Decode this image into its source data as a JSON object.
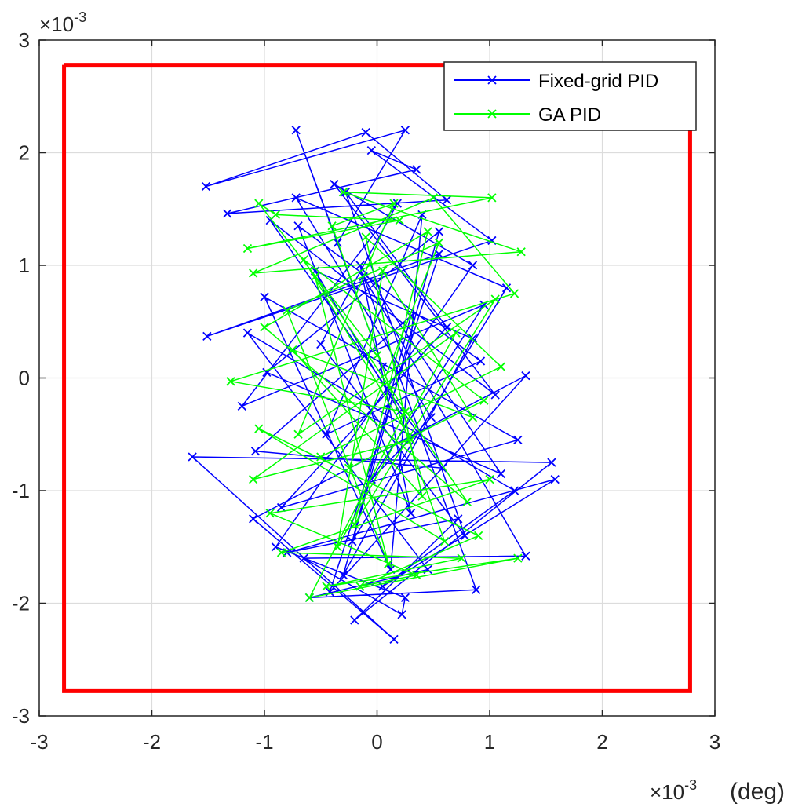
{
  "chart_data": {
    "type": "line",
    "title": "",
    "xlabel": "(deg)",
    "ylabel": "",
    "x_multiplier": "×10",
    "x_exponent": "-3",
    "y_multiplier": "×10",
    "y_exponent": "-3",
    "xlim": [
      -3,
      3
    ],
    "ylim": [
      -3,
      3
    ],
    "xticks": [
      -3,
      -2,
      -1,
      0,
      1,
      2,
      3
    ],
    "yticks": [
      -3,
      -2,
      -1,
      0,
      1,
      2,
      3
    ],
    "xtick_labels": [
      "-3",
      "-2",
      "-1",
      "0",
      "1",
      "2",
      "3"
    ],
    "ytick_labels": [
      "-3",
      "-2",
      "-1",
      "0",
      "1",
      "2",
      "3"
    ],
    "grid": true,
    "legend_position": "top-right",
    "boundary": {
      "color": "#ff0000",
      "x": [
        -2.78,
        2.78,
        2.78,
        -2.78,
        -2.78
      ],
      "y": [
        2.78,
        2.78,
        -2.78,
        -2.78,
        2.78
      ]
    },
    "series": [
      {
        "name": "Fixed-grid PID",
        "color": "#0000ff",
        "marker": "x",
        "x": [
          0.05,
          -0.72,
          -0.35,
          0.25,
          -1.52,
          -0.1,
          0.62,
          -1.33,
          0.35,
          -0.05,
          1.02,
          -1.51,
          0.55,
          -0.42,
          1.32,
          -1.1,
          0.15,
          -1.64,
          1.55,
          -0.2,
          0.72,
          -0.8,
          1.58,
          0.05,
          1.22,
          -1.15,
          0.45,
          -0.6,
          0.88,
          -0.12,
          1.32,
          -0.65,
          0.22,
          0.25,
          -0.9,
          0.85,
          -0.38,
          1.05,
          -0.95,
          0.58,
          -1.08,
          0.3,
          -0.22,
          1.15,
          -0.72,
          0.48,
          -0.05,
          0.95,
          -1.2,
          0.18,
          -0.5,
          0.78,
          -0.28,
          0.62,
          -0.85,
          1.25,
          -1.0,
          0.12,
          0.4,
          -0.45,
          0.92,
          -0.7,
          0.3,
          -0.15,
          1.1,
          -0.98,
          0.55,
          -0.3,
          0.85,
          -0.55,
          0.2
        ],
        "y": [
          0.1,
          2.2,
          1.2,
          2.2,
          1.7,
          2.18,
          1.58,
          1.46,
          1.85,
          2.02,
          1.22,
          0.37,
          1.1,
          -1.9,
          0.02,
          -1.25,
          -2.32,
          -0.7,
          -0.75,
          -2.15,
          -1.25,
          -1.55,
          -0.9,
          -1.85,
          -1.0,
          0.4,
          -1.7,
          -1.95,
          -1.88,
          0.9,
          -1.58,
          -1.6,
          -2.1,
          -1.95,
          -1.5,
          1.0,
          1.72,
          -0.15,
          1.4,
          -0.8,
          -0.65,
          0.55,
          -1.45,
          0.8,
          1.6,
          -0.35,
          -0.9,
          0.65,
          -0.25,
          1.55,
          0.3,
          -1.4,
          1.65,
          0.45,
          -1.15,
          -0.55,
          0.72,
          -1.7,
          1.45,
          -0.5,
          0.15,
          1.35,
          -1.2,
          1.0,
          -0.85,
          0.05,
          1.3,
          -1.75,
          0.35,
          0.95,
          -0.3
        ]
      },
      {
        "name": "GA PID",
        "color": "#00ff00",
        "marker": "x",
        "x": [
          0.0,
          -1.05,
          -0.9,
          0.2,
          -1.15,
          1.02,
          -0.3,
          1.28,
          -1.1,
          0.5,
          1.22,
          -1.3,
          0.25,
          -0.6,
          1.25,
          -0.45,
          0.75,
          -0.85,
          1.0,
          -0.95,
          0.35,
          -0.15,
          0.9,
          -1.05,
          0.6,
          -0.4,
          0.15,
          -0.7,
          1.05,
          -0.2,
          0.45,
          -1.0,
          0.8,
          -0.55,
          0.1,
          -0.8,
          0.55,
          -0.25,
          0.95,
          -0.65,
          0.3,
          -1.1,
          0.7,
          -0.35,
          0.05,
          0.85,
          -0.75,
          0.4,
          -0.1,
          1.1,
          -0.5
        ],
        "y": [
          0.2,
          1.55,
          1.45,
          1.4,
          1.15,
          1.6,
          1.65,
          1.12,
          0.93,
          1.6,
          0.75,
          -0.03,
          -0.3,
          -1.95,
          -1.6,
          -1.85,
          -1.6,
          -1.55,
          -0.9,
          -1.2,
          -1.75,
          -1.85,
          -1.4,
          -0.45,
          -1.45,
          1.35,
          1.55,
          -0.5,
          0.7,
          -1.3,
          1.3,
          0.45,
          -1.1,
          0.9,
          -1.65,
          0.6,
          1.2,
          -0.8,
          -0.2,
          1.05,
          -0.55,
          -0.9,
          0.4,
          -1.5,
          0.95,
          -0.35,
          0.25,
          -1.05,
          1.25,
          0.1,
          -0.7
        ]
      }
    ]
  }
}
